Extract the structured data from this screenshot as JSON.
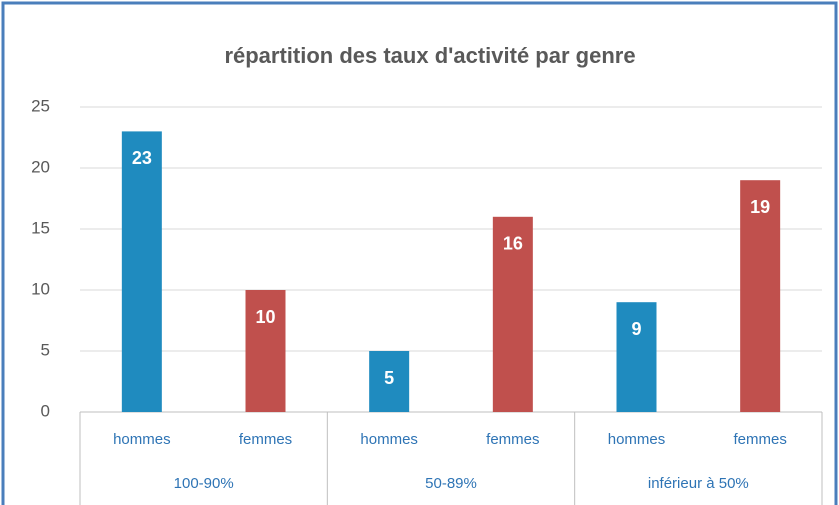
{
  "chart_data": {
    "type": "bar",
    "title": "répartition des taux d'activité par genre",
    "categories": [
      "hommes",
      "femmes",
      "hommes",
      "femmes",
      "hommes",
      "femmes"
    ],
    "groups": [
      {
        "name": "100-90%",
        "size": 2
      },
      {
        "name": "50-89%",
        "size": 2
      },
      {
        "name": "inférieur à 50%",
        "size": 2
      }
    ],
    "values": [
      23,
      10,
      5,
      16,
      9,
      19
    ],
    "colors": [
      "#1f8bbf",
      "#c0504d",
      "#1f8bbf",
      "#c0504d",
      "#1f8bbf",
      "#c0504d"
    ],
    "ylim": [
      0,
      25
    ],
    "yticks": [
      0,
      5,
      10,
      15,
      20,
      25
    ],
    "grid": true,
    "data_labels": true
  }
}
